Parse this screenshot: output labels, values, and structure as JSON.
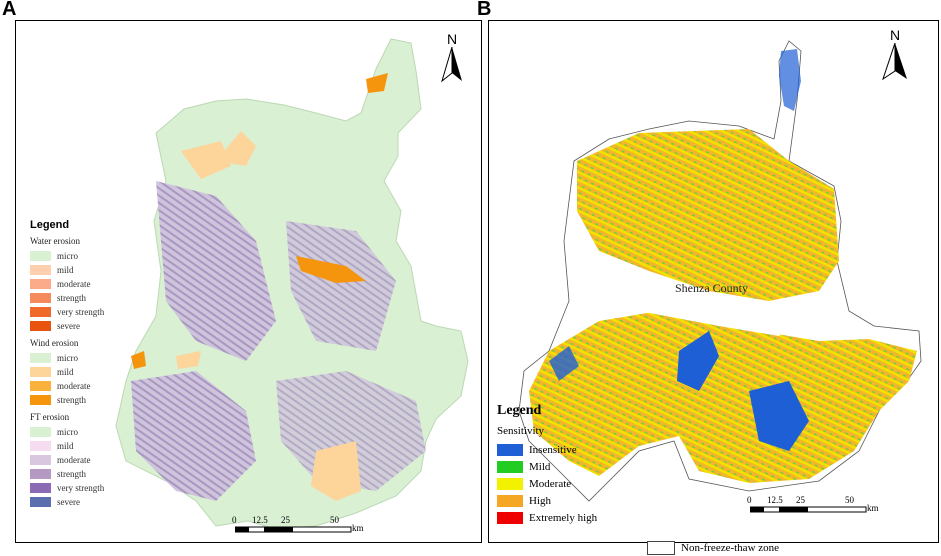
{
  "panels": {
    "a": {
      "letter": "A",
      "legend": {
        "title": "Legend",
        "groups": [
          {
            "name": "Water erosion",
            "items": [
              {
                "label": "micro",
                "color": "#d9f0d3"
              },
              {
                "label": "mild",
                "color": "#fdcfae"
              },
              {
                "label": "moderate",
                "color": "#fbab8a"
              },
              {
                "label": "strength",
                "color": "#f58a5c"
              },
              {
                "label": "very strength",
                "color": "#ef6a2a"
              },
              {
                "label": "severe",
                "color": "#e8530f"
              }
            ]
          },
          {
            "name": "Wind erosion",
            "items": [
              {
                "label": "micro",
                "color": "#d9f0d3"
              },
              {
                "label": "mild",
                "color": "#fdd49a"
              },
              {
                "label": "moderate",
                "color": "#fbb23c"
              },
              {
                "label": "strength",
                "color": "#f5950e"
              }
            ]
          },
          {
            "name": "FT erosion",
            "items": [
              {
                "label": "micro",
                "color": "#d9f0d3"
              },
              {
                "label": "mild",
                "color": "#f5dcf0"
              },
              {
                "label": "moderate",
                "color": "#d8c7df"
              },
              {
                "label": "strength",
                "color": "#b49ac2"
              },
              {
                "label": "very strength",
                "color": "#8b6bb5"
              },
              {
                "label": "severe",
                "color": "#5b6fae"
              }
            ]
          }
        ]
      },
      "north": "N",
      "scale": {
        "ticks": [
          "0",
          "12.5",
          "25",
          "50"
        ],
        "unit": "km"
      }
    },
    "b": {
      "letter": "B",
      "legend": {
        "title": "Legend",
        "subtitle": "Sensitivity",
        "items": [
          {
            "label": "Insensitive",
            "color": "#1f5fd6"
          },
          {
            "label": "Mild",
            "color": "#22cc22"
          },
          {
            "label": "Moderate",
            "color": "#f2f200"
          },
          {
            "label": "High",
            "color": "#f5a623"
          },
          {
            "label": "Extremely high",
            "color": "#ee0000"
          }
        ],
        "extra": {
          "label": "Non-freeze-thaw zone",
          "color": "#ffffff"
        }
      },
      "place_label": "Shenza County",
      "north": "N",
      "scale": {
        "ticks": [
          "0",
          "12.5",
          "25",
          "50"
        ],
        "unit": "km"
      }
    }
  }
}
